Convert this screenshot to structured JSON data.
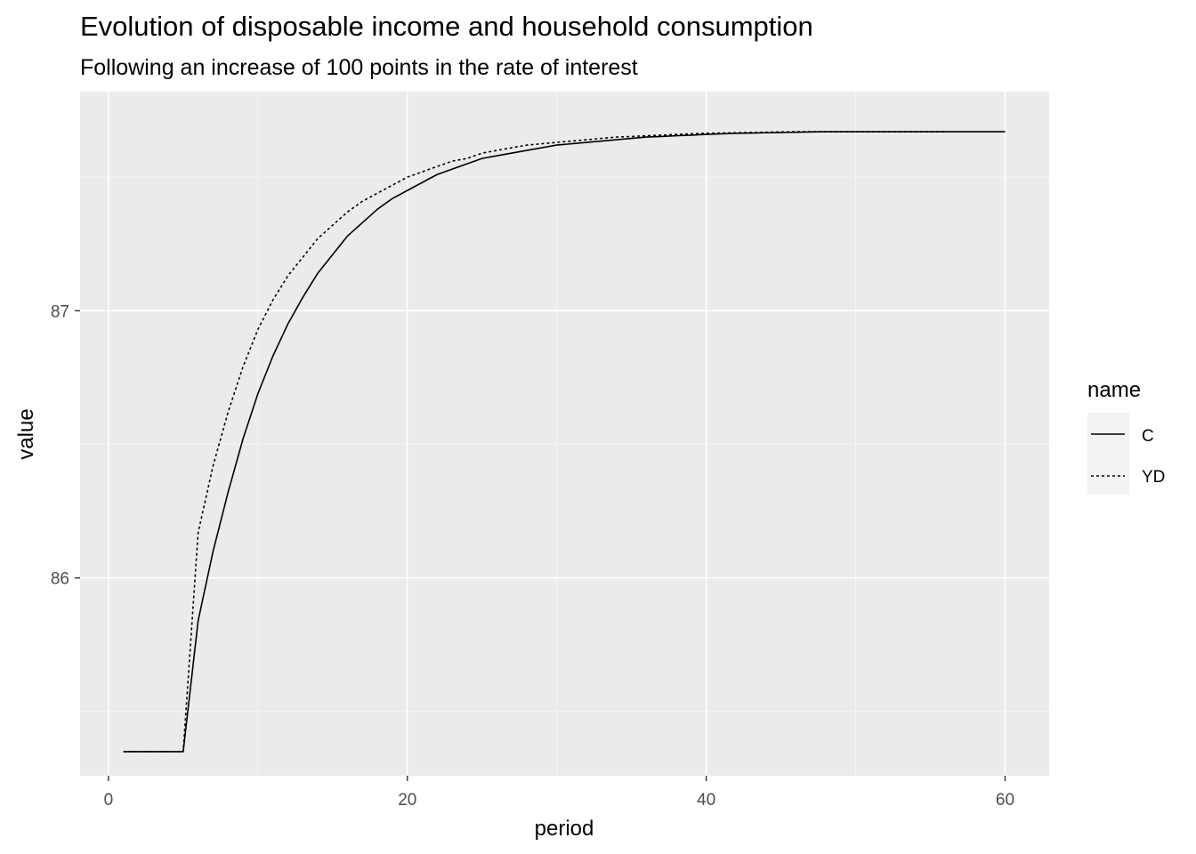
{
  "chart_data": {
    "type": "line",
    "title": "Evolution of disposable income and household consumption",
    "subtitle": "Following an increase of 100 points in the rate of interest",
    "xlabel": "period",
    "ylabel": "value",
    "xlim": [
      -1.9,
      62.95
    ],
    "ylim": [
      85.26,
      87.82
    ],
    "x_ticks": [
      0,
      20,
      40,
      60
    ],
    "x_tick_labels": [
      "0",
      "20",
      "40",
      "60"
    ],
    "x_minor_ticks": [
      10,
      30,
      50
    ],
    "y_ticks": [
      86,
      87
    ],
    "y_tick_labels": [
      "86",
      "87"
    ],
    "y_minor_ticks": [
      85.5,
      86.5,
      87.5
    ],
    "grid": true,
    "legend": {
      "title": "name",
      "position": "right"
    },
    "series": [
      {
        "name": "C",
        "style": "solid",
        "color": "#000000",
        "x": [
          1,
          2,
          3,
          4,
          5,
          6,
          7,
          8,
          9,
          10,
          11,
          12,
          13,
          14,
          15,
          16,
          17,
          18,
          19,
          20,
          21,
          22,
          23,
          24,
          25,
          26,
          27,
          28,
          29,
          30,
          31,
          32,
          33,
          34,
          35,
          36,
          37,
          38,
          39,
          40,
          41,
          42,
          43,
          44,
          45,
          46,
          47,
          48,
          49,
          50,
          51,
          52,
          53,
          54,
          55,
          56,
          57,
          58,
          59,
          60
        ],
        "values": [
          85.35,
          85.35,
          85.35,
          85.35,
          85.35,
          85.84,
          86.1,
          86.32,
          86.52,
          86.69,
          86.83,
          86.95,
          87.05,
          87.14,
          87.21,
          87.28,
          87.33,
          87.38,
          87.42,
          87.45,
          87.48,
          87.51,
          87.53,
          87.55,
          87.57,
          87.58,
          87.59,
          87.6,
          87.61,
          87.62,
          87.625,
          87.63,
          87.635,
          87.64,
          87.645,
          87.65,
          87.652,
          87.655,
          87.657,
          87.66,
          87.662,
          87.664,
          87.665,
          87.666,
          87.667,
          87.668,
          87.669,
          87.67,
          87.67,
          87.67,
          87.67,
          87.67,
          87.67,
          87.67,
          87.67,
          87.67,
          87.67,
          87.67,
          87.67,
          87.67
        ]
      },
      {
        "name": "YD",
        "style": "dotted",
        "color": "#000000",
        "x": [
          1,
          2,
          3,
          4,
          5,
          6,
          7,
          8,
          9,
          10,
          11,
          12,
          13,
          14,
          15,
          16,
          17,
          18,
          19,
          20,
          21,
          22,
          23,
          24,
          25,
          26,
          27,
          28,
          29,
          30,
          31,
          32,
          33,
          34,
          35,
          36,
          37,
          38,
          39,
          40,
          41,
          42,
          43,
          44,
          45,
          46,
          47,
          48,
          49,
          50,
          51,
          52,
          53,
          54,
          55,
          56
        ],
        "values": [
          85.35,
          85.35,
          85.35,
          85.35,
          85.35,
          86.17,
          86.42,
          86.62,
          86.79,
          86.93,
          87.04,
          87.13,
          87.2,
          87.27,
          87.32,
          87.37,
          87.41,
          87.44,
          87.47,
          87.5,
          87.52,
          87.54,
          87.56,
          87.57,
          87.59,
          87.6,
          87.61,
          87.62,
          87.625,
          87.63,
          87.635,
          87.64,
          87.645,
          87.65,
          87.652,
          87.655,
          87.657,
          87.66,
          87.662,
          87.664,
          87.665,
          87.666,
          87.667,
          87.668,
          87.669,
          87.67,
          87.67,
          87.67,
          87.67,
          87.67,
          87.67,
          87.67,
          87.67,
          87.67,
          87.67,
          87.67
        ]
      }
    ]
  },
  "colors": {
    "panel_background": "#ebebeb",
    "grid_major": "#ffffff",
    "grid_minor": "#f5f5f5",
    "tick_text": "#4d4d4d",
    "tick_mark": "#333333",
    "legend_key_background": "#f2f2f2"
  }
}
